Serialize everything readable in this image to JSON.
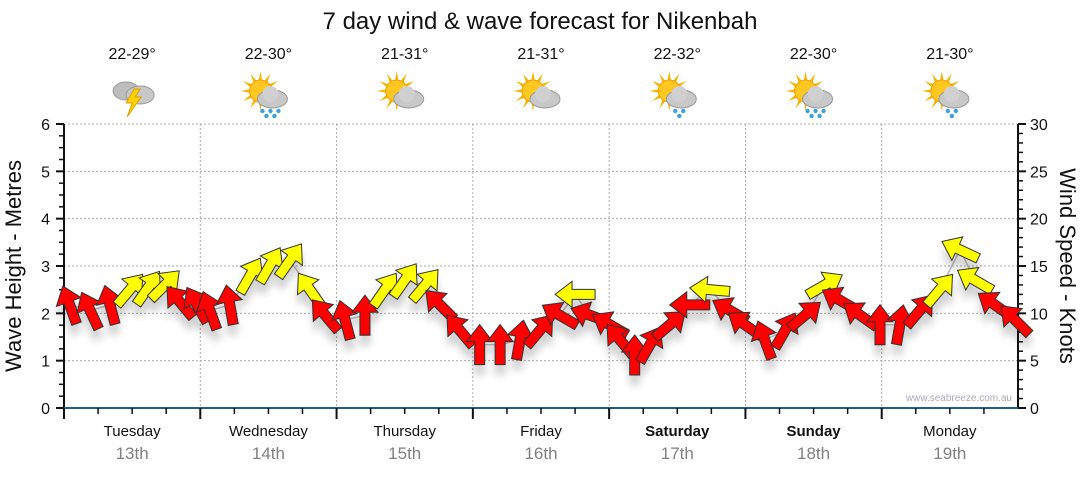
{
  "chart_data": {
    "type": "scatter",
    "title": "7 day wind & wave forecast for Nikenbah",
    "ylabel": "Wave Height - Metres",
    "ylabel_right": "Wind Speed - Knots",
    "ylim": [
      0,
      6
    ],
    "ylim_right": [
      0,
      30
    ],
    "yticks": [
      "0",
      "1",
      "2",
      "3",
      "4",
      "5",
      "6"
    ],
    "yticks_right": [
      "0",
      "5",
      "10",
      "15",
      "20",
      "25",
      "30"
    ],
    "xlim_hours": [
      0,
      168
    ],
    "grid": true,
    "watermark": "www.seabreeze.com.au",
    "days": [
      {
        "day": "Tuesday",
        "date": "13th",
        "temp": "22-29°",
        "icon": "thunderstorm",
        "bold": false
      },
      {
        "day": "Wednesday",
        "date": "14th",
        "temp": "22-30°",
        "icon": "sun-cloud-rain",
        "bold": false
      },
      {
        "day": "Thursday",
        "date": "15th",
        "temp": "21-31°",
        "icon": "sun-cloud",
        "bold": false
      },
      {
        "day": "Friday",
        "date": "16th",
        "temp": "21-31°",
        "icon": "sun-cloud",
        "bold": false
      },
      {
        "day": "Saturday",
        "date": "17th",
        "temp": "22-32°",
        "icon": "sun-cloud-shower",
        "bold": true
      },
      {
        "day": "Sunday",
        "date": "18th",
        "temp": "22-30°",
        "icon": "sun-cloud-rain",
        "bold": true
      },
      {
        "day": "Monday",
        "date": "19th",
        "temp": "21-30°",
        "icon": "sun-cloud-shower",
        "bold": false
      }
    ],
    "wind_color_threshold_knots": 11.8,
    "colors": {
      "low": "#ff0000",
      "high": "#ffff00",
      "axis": "#1f5f8b",
      "grid": "#aaaaaa",
      "date": "#808080"
    },
    "wind_series": {
      "fields": [
        "hour",
        "knots",
        "bearing_deg"
      ],
      "points": [
        [
          1,
          10.9,
          340
        ],
        [
          4.6,
          10.3,
          335
        ],
        [
          8.1,
          10.9,
          345
        ],
        [
          11.6,
          12.5,
          40
        ],
        [
          14.8,
          12.7,
          35
        ],
        [
          17.8,
          13.0,
          45
        ],
        [
          20.4,
          11.2,
          320
        ],
        [
          23.4,
          10.9,
          330
        ],
        [
          25.7,
          10.3,
          340
        ],
        [
          29.2,
          10.9,
          350
        ],
        [
          32.8,
          14.0,
          30
        ],
        [
          36.3,
          15.1,
          30
        ],
        [
          39.8,
          15.6,
          35
        ],
        [
          43.3,
          12.5,
          325
        ],
        [
          46,
          9.8,
          320
        ],
        [
          49.5,
          9.3,
          345
        ],
        [
          53,
          9.8,
          0
        ],
        [
          56.5,
          12.5,
          35
        ],
        [
          60,
          13.5,
          35
        ],
        [
          63.6,
          13.0,
          40
        ],
        [
          66.2,
          10.9,
          315
        ],
        [
          69.7,
          8.2,
          320
        ],
        [
          73.2,
          6.7,
          0
        ],
        [
          76.8,
          6.7,
          0
        ],
        [
          80.3,
          7.2,
          10
        ],
        [
          83.8,
          8.2,
          40
        ],
        [
          87.3,
          9.8,
          300
        ],
        [
          90,
          12.0,
          270
        ],
        [
          92.6,
          9.8,
          290
        ],
        [
          96.1,
          8.8,
          300
        ],
        [
          97.9,
          7.2,
          320
        ],
        [
          100.5,
          5.6,
          0
        ],
        [
          103.2,
          6.7,
          30
        ],
        [
          106.7,
          8.8,
          50
        ],
        [
          110.2,
          10.9,
          270
        ],
        [
          113.7,
          12.5,
          275
        ],
        [
          117.3,
          10.3,
          300
        ],
        [
          119.9,
          8.8,
          305
        ],
        [
          123.4,
          7.2,
          340
        ],
        [
          127,
          8.2,
          30
        ],
        [
          130.5,
          9.8,
          50
        ],
        [
          134,
          13.0,
          60
        ],
        [
          136.6,
          11.4,
          300
        ],
        [
          140.2,
          9.8,
          305
        ],
        [
          143.7,
          8.8,
          0
        ],
        [
          147.2,
          8.8,
          10
        ],
        [
          150.7,
          10.3,
          40
        ],
        [
          154.2,
          12.5,
          40
        ],
        [
          157.8,
          16.7,
          295
        ],
        [
          160.4,
          13.5,
          300
        ],
        [
          163.9,
          10.9,
          305
        ],
        [
          167.5,
          9.3,
          315
        ]
      ]
    }
  }
}
